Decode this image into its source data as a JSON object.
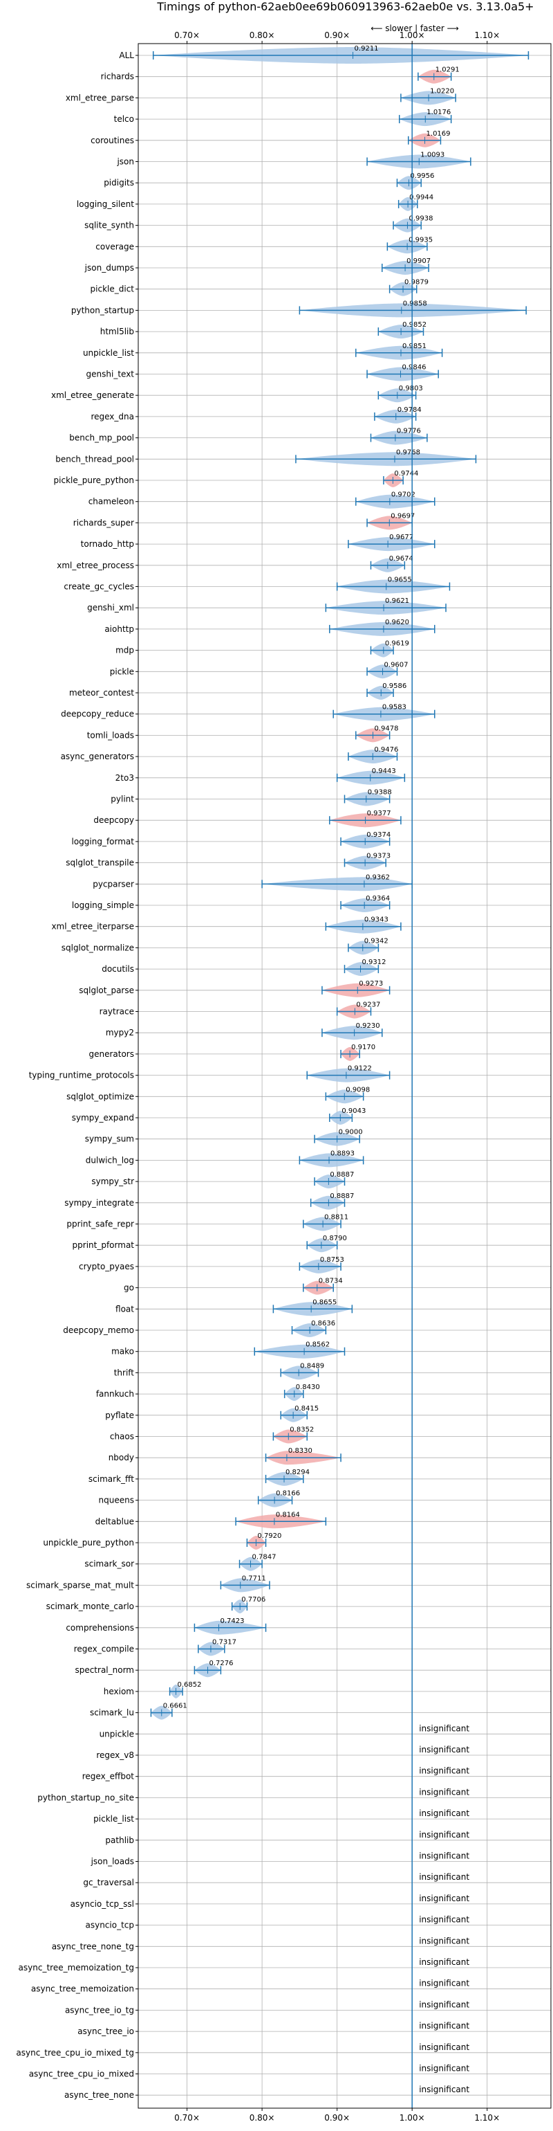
{
  "chart_data": {
    "type": "violin",
    "title": "Timings of python-62aeb0ee69b060913963-62aeb0e vs. 3.13.0a5+",
    "direction_label": "⟵ slower | faster ⟶",
    "xlim": [
      0.635,
      1.185
    ],
    "x_ticks": [
      0.7,
      0.8,
      0.9,
      1.0,
      1.1
    ],
    "x_tick_labels": [
      "0.70×",
      "0.80×",
      "0.90×",
      "1.00×",
      "1.10×"
    ],
    "reference_line": 1.0,
    "grid": true,
    "colors": {
      "normal": "#a9c8e6",
      "significant_slower": "#f2aaaa",
      "errorbar": "#1f77b4",
      "reference": "#1f77b4",
      "grid": "#b0b0b0"
    },
    "insignificant_label": "insignificant",
    "benchmarks": [
      {
        "name": "ALL",
        "value": 0.9211,
        "label": "0.9211",
        "lo": 0.655,
        "hi": 1.155,
        "sig": false
      },
      {
        "name": "richards",
        "value": 1.0291,
        "label": "1.0291",
        "lo": 1.008,
        "hi": 1.052,
        "sig": true
      },
      {
        "name": "xml_etree_parse",
        "value": 1.022,
        "label": "1.0220",
        "lo": 0.985,
        "hi": 1.058,
        "sig": false
      },
      {
        "name": "telco",
        "value": 1.0176,
        "label": "1.0176",
        "lo": 0.983,
        "hi": 1.052,
        "sig": false
      },
      {
        "name": "coroutines",
        "value": 1.0169,
        "label": "1.0169",
        "lo": 0.995,
        "hi": 1.038,
        "sig": true
      },
      {
        "name": "json",
        "value": 1.0093,
        "label": "1.0093",
        "lo": 0.94,
        "hi": 1.078,
        "sig": false
      },
      {
        "name": "pidigits",
        "value": 0.9956,
        "label": "0.9956",
        "lo": 0.98,
        "hi": 1.012,
        "sig": false
      },
      {
        "name": "logging_silent",
        "value": 0.9944,
        "label": "0.9944",
        "lo": 0.982,
        "hi": 1.007,
        "sig": false
      },
      {
        "name": "sqlite_synth",
        "value": 0.9938,
        "label": "0.9938",
        "lo": 0.975,
        "hi": 1.012,
        "sig": false
      },
      {
        "name": "coverage",
        "value": 0.9935,
        "label": "0.9935",
        "lo": 0.967,
        "hi": 1.02,
        "sig": false
      },
      {
        "name": "json_dumps",
        "value": 0.9907,
        "label": "0.9907",
        "lo": 0.96,
        "hi": 1.022,
        "sig": false
      },
      {
        "name": "pickle_dict",
        "value": 0.9879,
        "label": "0.9879",
        "lo": 0.97,
        "hi": 1.006,
        "sig": false
      },
      {
        "name": "python_startup",
        "value": 0.9858,
        "label": "0.9858",
        "lo": 0.85,
        "hi": 1.152,
        "sig": false
      },
      {
        "name": "html5lib",
        "value": 0.9852,
        "label": "0.9852",
        "lo": 0.955,
        "hi": 1.015,
        "sig": false
      },
      {
        "name": "unpickle_list",
        "value": 0.9851,
        "label": "0.9851",
        "lo": 0.925,
        "hi": 1.04,
        "sig": false
      },
      {
        "name": "genshi_text",
        "value": 0.9846,
        "label": "0.9846",
        "lo": 0.94,
        "hi": 1.035,
        "sig": false
      },
      {
        "name": "xml_etree_generate",
        "value": 0.9803,
        "label": "0.9803",
        "lo": 0.955,
        "hi": 1.005,
        "sig": false
      },
      {
        "name": "regex_dna",
        "value": 0.9784,
        "label": "0.9784",
        "lo": 0.95,
        "hi": 1.005,
        "sig": false
      },
      {
        "name": "bench_mp_pool",
        "value": 0.9776,
        "label": "0.9776",
        "lo": 0.945,
        "hi": 1.02,
        "sig": false
      },
      {
        "name": "bench_thread_pool",
        "value": 0.9768,
        "label": "0.9768",
        "lo": 0.845,
        "hi": 1.085,
        "sig": false
      },
      {
        "name": "pickle_pure_python",
        "value": 0.9744,
        "label": "0.9744",
        "lo": 0.962,
        "hi": 0.988,
        "sig": true
      },
      {
        "name": "chameleon",
        "value": 0.9702,
        "label": "0.9702",
        "lo": 0.925,
        "hi": 1.03,
        "sig": false
      },
      {
        "name": "richards_super",
        "value": 0.9697,
        "label": "0.9697",
        "lo": 0.94,
        "hi": 1.0,
        "sig": true
      },
      {
        "name": "tornado_http",
        "value": 0.9677,
        "label": "0.9677",
        "lo": 0.915,
        "hi": 1.03,
        "sig": false
      },
      {
        "name": "xml_etree_process",
        "value": 0.9674,
        "label": "0.9674",
        "lo": 0.945,
        "hi": 0.99,
        "sig": false
      },
      {
        "name": "create_gc_cycles",
        "value": 0.9655,
        "label": "0.9655",
        "lo": 0.9,
        "hi": 1.05,
        "sig": false
      },
      {
        "name": "genshi_xml",
        "value": 0.9621,
        "label": "0.9621",
        "lo": 0.885,
        "hi": 1.045,
        "sig": false
      },
      {
        "name": "aiohttp",
        "value": 0.962,
        "label": "0.9620",
        "lo": 0.89,
        "hi": 1.03,
        "sig": false
      },
      {
        "name": "mdp",
        "value": 0.9619,
        "label": "0.9619",
        "lo": 0.945,
        "hi": 0.975,
        "sig": false
      },
      {
        "name": "pickle",
        "value": 0.9607,
        "label": "0.9607",
        "lo": 0.94,
        "hi": 0.98,
        "sig": false
      },
      {
        "name": "meteor_contest",
        "value": 0.9586,
        "label": "0.9586",
        "lo": 0.94,
        "hi": 0.975,
        "sig": false
      },
      {
        "name": "deepcopy_reduce",
        "value": 0.9583,
        "label": "0.9583",
        "lo": 0.895,
        "hi": 1.03,
        "sig": false
      },
      {
        "name": "tomli_loads",
        "value": 0.9478,
        "label": "0.9478",
        "lo": 0.925,
        "hi": 0.97,
        "sig": true
      },
      {
        "name": "async_generators",
        "value": 0.9476,
        "label": "0.9476",
        "lo": 0.915,
        "hi": 0.98,
        "sig": false
      },
      {
        "name": "2to3",
        "value": 0.9443,
        "label": "0.9443",
        "lo": 0.9,
        "hi": 0.99,
        "sig": false
      },
      {
        "name": "pylint",
        "value": 0.9388,
        "label": "0.9388",
        "lo": 0.91,
        "hi": 0.97,
        "sig": false
      },
      {
        "name": "deepcopy",
        "value": 0.9377,
        "label": "0.9377",
        "lo": 0.89,
        "hi": 0.985,
        "sig": true
      },
      {
        "name": "logging_format",
        "value": 0.9374,
        "label": "0.9374",
        "lo": 0.905,
        "hi": 0.97,
        "sig": false
      },
      {
        "name": "sqlglot_transpile",
        "value": 0.9373,
        "label": "0.9373",
        "lo": 0.91,
        "hi": 0.965,
        "sig": false
      },
      {
        "name": "pycparser",
        "value": 0.9362,
        "label": "0.9362",
        "lo": 0.8,
        "hi": 1.0,
        "sig": false
      },
      {
        "name": "logging_simple",
        "value": 0.9364,
        "label": "0.9364",
        "lo": 0.905,
        "hi": 0.97,
        "sig": false
      },
      {
        "name": "xml_etree_iterparse",
        "value": 0.9343,
        "label": "0.9343",
        "lo": 0.885,
        "hi": 0.985,
        "sig": false
      },
      {
        "name": "sqlglot_normalize",
        "value": 0.9342,
        "label": "0.9342",
        "lo": 0.915,
        "hi": 0.955,
        "sig": false
      },
      {
        "name": "docutils",
        "value": 0.9312,
        "label": "0.9312",
        "lo": 0.91,
        "hi": 0.955,
        "sig": false
      },
      {
        "name": "sqlglot_parse",
        "value": 0.9273,
        "label": "0.9273",
        "lo": 0.88,
        "hi": 0.97,
        "sig": true
      },
      {
        "name": "raytrace",
        "value": 0.9237,
        "label": "0.9237",
        "lo": 0.9,
        "hi": 0.945,
        "sig": true
      },
      {
        "name": "mypy2",
        "value": 0.923,
        "label": "0.9230",
        "lo": 0.88,
        "hi": 0.96,
        "sig": false
      },
      {
        "name": "generators",
        "value": 0.917,
        "label": "0.9170",
        "lo": 0.905,
        "hi": 0.93,
        "sig": true
      },
      {
        "name": "typing_runtime_protocols",
        "value": 0.9122,
        "label": "0.9122",
        "lo": 0.86,
        "hi": 0.97,
        "sig": false
      },
      {
        "name": "sqlglot_optimize",
        "value": 0.9098,
        "label": "0.9098",
        "lo": 0.885,
        "hi": 0.935,
        "sig": false
      },
      {
        "name": "sympy_expand",
        "value": 0.9043,
        "label": "0.9043",
        "lo": 0.89,
        "hi": 0.92,
        "sig": false
      },
      {
        "name": "sympy_sum",
        "value": 0.9,
        "label": "0.9000",
        "lo": 0.87,
        "hi": 0.93,
        "sig": false
      },
      {
        "name": "dulwich_log",
        "value": 0.8893,
        "label": "0.8893",
        "lo": 0.85,
        "hi": 0.935,
        "sig": false
      },
      {
        "name": "sympy_str",
        "value": 0.8887,
        "label": "0.8887",
        "lo": 0.87,
        "hi": 0.91,
        "sig": false
      },
      {
        "name": "sympy_integrate",
        "value": 0.8887,
        "label": "0.8887",
        "lo": 0.865,
        "hi": 0.91,
        "sig": false
      },
      {
        "name": "pprint_safe_repr",
        "value": 0.8811,
        "label": "0.8811",
        "lo": 0.855,
        "hi": 0.905,
        "sig": false
      },
      {
        "name": "pprint_pformat",
        "value": 0.879,
        "label": "0.8790",
        "lo": 0.86,
        "hi": 0.9,
        "sig": false
      },
      {
        "name": "crypto_pyaes",
        "value": 0.8753,
        "label": "0.8753",
        "lo": 0.85,
        "hi": 0.905,
        "sig": false
      },
      {
        "name": "go",
        "value": 0.8734,
        "label": "0.8734",
        "lo": 0.855,
        "hi": 0.895,
        "sig": true
      },
      {
        "name": "float",
        "value": 0.8655,
        "label": "0.8655",
        "lo": 0.815,
        "hi": 0.92,
        "sig": false
      },
      {
        "name": "deepcopy_memo",
        "value": 0.8636,
        "label": "0.8636",
        "lo": 0.84,
        "hi": 0.885,
        "sig": false
      },
      {
        "name": "mako",
        "value": 0.8562,
        "label": "0.8562",
        "lo": 0.79,
        "hi": 0.91,
        "sig": false
      },
      {
        "name": "thrift",
        "value": 0.8489,
        "label": "0.8489",
        "lo": 0.825,
        "hi": 0.875,
        "sig": false
      },
      {
        "name": "fannkuch",
        "value": 0.843,
        "label": "0.8430",
        "lo": 0.83,
        "hi": 0.855,
        "sig": false
      },
      {
        "name": "pyflate",
        "value": 0.8415,
        "label": "0.8415",
        "lo": 0.825,
        "hi": 0.86,
        "sig": false
      },
      {
        "name": "chaos",
        "value": 0.8352,
        "label": "0.8352",
        "lo": 0.815,
        "hi": 0.86,
        "sig": true
      },
      {
        "name": "nbody",
        "value": 0.833,
        "label": "0.8330",
        "lo": 0.805,
        "hi": 0.905,
        "sig": true
      },
      {
        "name": "scimark_fft",
        "value": 0.8294,
        "label": "0.8294",
        "lo": 0.805,
        "hi": 0.855,
        "sig": false
      },
      {
        "name": "nqueens",
        "value": 0.8166,
        "label": "0.8166",
        "lo": 0.795,
        "hi": 0.84,
        "sig": false
      },
      {
        "name": "deltablue",
        "value": 0.8164,
        "label": "0.8164",
        "lo": 0.765,
        "hi": 0.885,
        "sig": true
      },
      {
        "name": "unpickle_pure_python",
        "value": 0.792,
        "label": "0.7920",
        "lo": 0.78,
        "hi": 0.805,
        "sig": true
      },
      {
        "name": "scimark_sor",
        "value": 0.7847,
        "label": "0.7847",
        "lo": 0.77,
        "hi": 0.8,
        "sig": false
      },
      {
        "name": "scimark_sparse_mat_mult",
        "value": 0.7711,
        "label": "0.7711",
        "lo": 0.745,
        "hi": 0.81,
        "sig": false
      },
      {
        "name": "scimark_monte_carlo",
        "value": 0.7706,
        "label": "0.7706",
        "lo": 0.76,
        "hi": 0.78,
        "sig": false
      },
      {
        "name": "comprehensions",
        "value": 0.7423,
        "label": "0.7423",
        "lo": 0.71,
        "hi": 0.805,
        "sig": false
      },
      {
        "name": "regex_compile",
        "value": 0.7317,
        "label": "0.7317",
        "lo": 0.715,
        "hi": 0.75,
        "sig": false
      },
      {
        "name": "spectral_norm",
        "value": 0.7276,
        "label": "0.7276",
        "lo": 0.71,
        "hi": 0.745,
        "sig": false
      },
      {
        "name": "hexiom",
        "value": 0.6852,
        "label": "0.6852",
        "lo": 0.677,
        "hi": 0.694,
        "sig": false
      },
      {
        "name": "scimark_lu",
        "value": 0.6661,
        "label": "0.6661",
        "lo": 0.652,
        "hi": 0.68,
        "sig": false
      },
      {
        "name": "unpickle",
        "insignificant": true
      },
      {
        "name": "regex_v8",
        "insignificant": true
      },
      {
        "name": "regex_effbot",
        "insignificant": true
      },
      {
        "name": "python_startup_no_site",
        "insignificant": true
      },
      {
        "name": "pickle_list",
        "insignificant": true
      },
      {
        "name": "pathlib",
        "insignificant": true
      },
      {
        "name": "json_loads",
        "insignificant": true
      },
      {
        "name": "gc_traversal",
        "insignificant": true
      },
      {
        "name": "asyncio_tcp_ssl",
        "insignificant": true
      },
      {
        "name": "asyncio_tcp",
        "insignificant": true
      },
      {
        "name": "async_tree_none_tg",
        "insignificant": true
      },
      {
        "name": "async_tree_memoization_tg",
        "insignificant": true
      },
      {
        "name": "async_tree_memoization",
        "insignificant": true
      },
      {
        "name": "async_tree_io_tg",
        "insignificant": true
      },
      {
        "name": "async_tree_io",
        "insignificant": true
      },
      {
        "name": "async_tree_cpu_io_mixed_tg",
        "insignificant": true
      },
      {
        "name": "async_tree_cpu_io_mixed",
        "insignificant": true
      },
      {
        "name": "async_tree_none",
        "insignificant": true
      }
    ]
  }
}
